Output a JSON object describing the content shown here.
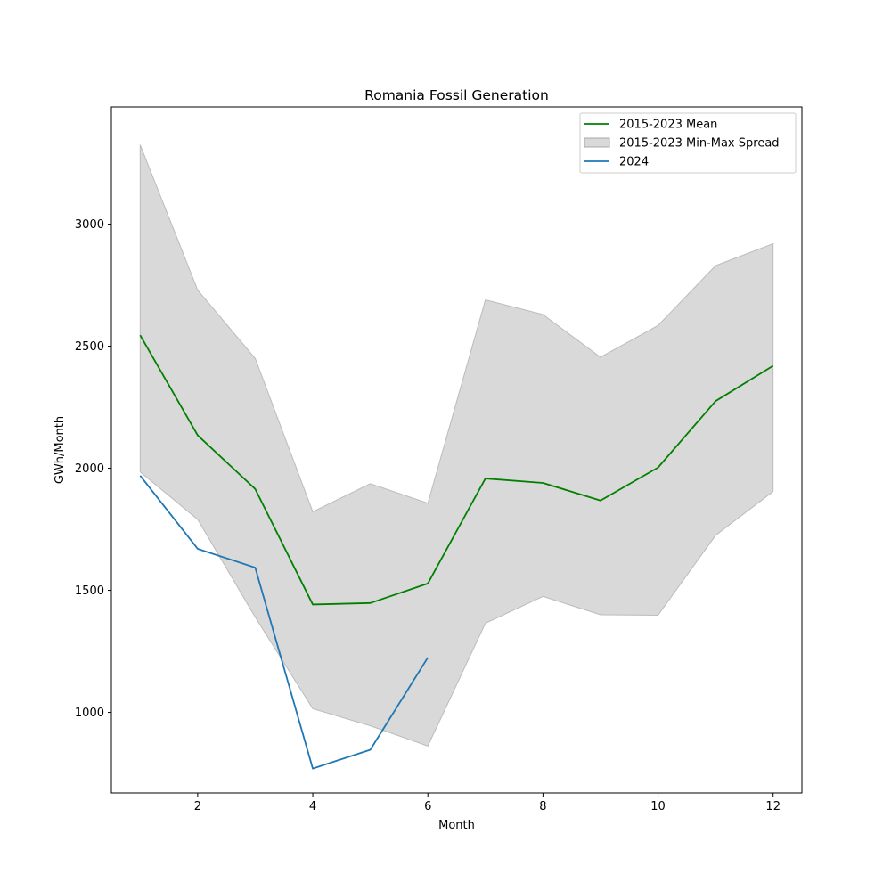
{
  "chart_data": {
    "type": "line",
    "title": "Romania Fossil Generation",
    "xlabel": "Month",
    "ylabel": "GWh/Month",
    "xlim": [
      0.5,
      12.5
    ],
    "ylim": [
      670,
      3480
    ],
    "xticks": [
      2,
      4,
      6,
      8,
      10,
      12
    ],
    "yticks": [
      1000,
      1500,
      2000,
      2500,
      3000
    ],
    "grid": false,
    "legend_position": "top-right",
    "band": {
      "name": "2015-2023 Min-Max Spread",
      "color": "#bfbfbf",
      "x": [
        1,
        2,
        3,
        4,
        5,
        6,
        7,
        8,
        9,
        10,
        11,
        12
      ],
      "min": [
        1985,
        1790,
        1390,
        1015,
        945,
        862,
        1365,
        1475,
        1400,
        1398,
        1725,
        1905
      ],
      "max": [
        3325,
        2730,
        2450,
        1822,
        1937,
        1857,
        2690,
        2630,
        2455,
        2585,
        2830,
        2920
      ]
    },
    "series": [
      {
        "name": "2015-2023 Mean",
        "color": "#008000",
        "x": [
          1,
          2,
          3,
          4,
          5,
          6,
          7,
          8,
          9,
          10,
          11,
          12
        ],
        "values": [
          2545,
          2135,
          1915,
          1442,
          1448,
          1528,
          1958,
          1940,
          1868,
          2003,
          2275,
          2420
        ]
      },
      {
        "name": "2024",
        "color": "#1f77b4",
        "x": [
          1,
          2,
          3,
          4,
          5,
          6
        ],
        "values": [
          1970,
          1670,
          1593,
          770,
          847,
          1225
        ]
      }
    ]
  }
}
